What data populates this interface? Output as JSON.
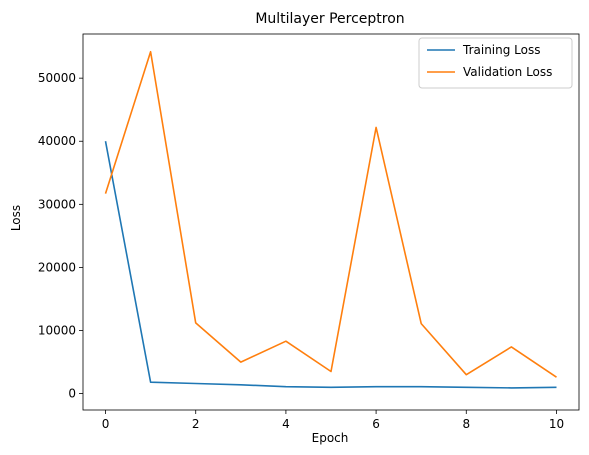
{
  "chart_data": {
    "type": "line",
    "title": "Multilayer Perceptron",
    "xlabel": "Epoch",
    "ylabel": "Loss",
    "x": [
      0,
      1,
      2,
      3,
      4,
      5,
      6,
      7,
      8,
      9,
      10
    ],
    "xlim": [
      -0.5,
      10.5
    ],
    "ylim": [
      -2600,
      57000
    ],
    "xticks": [
      0,
      2,
      4,
      6,
      8,
      10
    ],
    "yticks": [
      0,
      10000,
      20000,
      30000,
      40000,
      50000
    ],
    "grid": false,
    "legend_position": "top-right",
    "series": [
      {
        "name": "Training Loss",
        "color": "#1f77b4",
        "values": [
          40000,
          1800,
          1600,
          1400,
          1100,
          1000,
          1100,
          1100,
          1000,
          900,
          1000
        ]
      },
      {
        "name": "Validation Loss",
        "color": "#ff7f0e",
        "values": [
          31700,
          54200,
          11200,
          5000,
          8300,
          3500,
          42200,
          11100,
          3000,
          7400,
          2600
        ]
      }
    ]
  }
}
